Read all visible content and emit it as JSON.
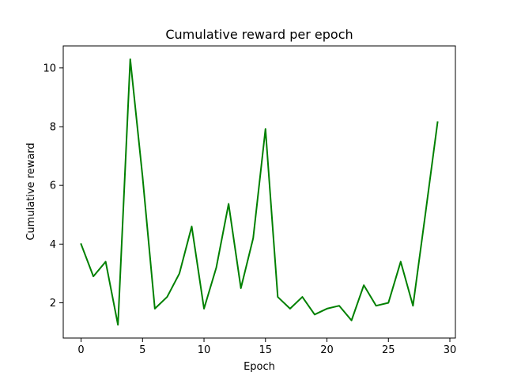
{
  "chart_data": {
    "type": "line",
    "title": "Cumulative reward per epoch",
    "xlabel": "Epoch",
    "ylabel": "Cumulative reward",
    "xlim": [
      -1.45,
      30.45
    ],
    "ylim": [
      0.8,
      10.75
    ],
    "xticks": [
      0,
      5,
      10,
      15,
      20,
      25,
      30
    ],
    "yticks": [
      2,
      4,
      6,
      8,
      10
    ],
    "grid": false,
    "legend": "none",
    "series": [
      {
        "color": "#008000",
        "x": [
          0,
          1,
          2,
          3,
          4,
          5,
          6,
          7,
          8,
          9,
          10,
          11,
          12,
          13,
          14,
          15,
          16,
          17,
          18,
          19,
          20,
          21,
          22,
          23,
          24,
          25,
          26,
          27,
          28,
          29
        ],
        "y": [
          4.0,
          2.9,
          3.4,
          1.25,
          10.3,
          6.3,
          1.8,
          2.2,
          3.0,
          4.6,
          1.8,
          3.2,
          5.37,
          2.5,
          4.2,
          7.92,
          2.2,
          1.8,
          2.2,
          1.6,
          1.8,
          1.9,
          1.4,
          2.6,
          1.9,
          2.0,
          3.4,
          1.9,
          5.0,
          8.15
        ]
      }
    ]
  }
}
